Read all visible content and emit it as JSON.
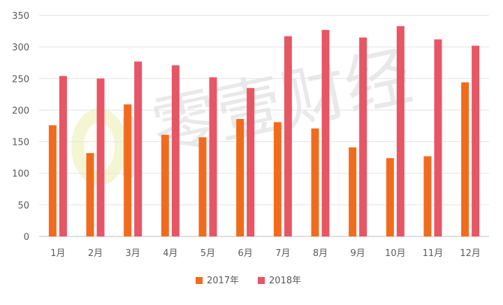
{
  "watermark": {
    "text": "零壹财经"
  },
  "chart_data": {
    "type": "bar",
    "categories": [
      "1月",
      "2月",
      "3月",
      "4月",
      "5月",
      "6月",
      "7月",
      "8月",
      "9月",
      "10月",
      "11月",
      "12月"
    ],
    "series": [
      {
        "name": "2017年",
        "color": "#F26B1D",
        "values": [
          176,
          132,
          209,
          161,
          157,
          186,
          181,
          171,
          141,
          124,
          127,
          244
        ]
      },
      {
        "name": "2018年",
        "color": "#E85565",
        "values": [
          254,
          250,
          277,
          271,
          252,
          235,
          317,
          327,
          315,
          333,
          312,
          302
        ]
      }
    ],
    "title": "",
    "xlabel": "",
    "ylabel": "",
    "ylim": [
      0,
      350
    ],
    "yticks": [
      0,
      50,
      100,
      150,
      200,
      250,
      300,
      350
    ],
    "grid": true,
    "legend_position": "bottom"
  }
}
